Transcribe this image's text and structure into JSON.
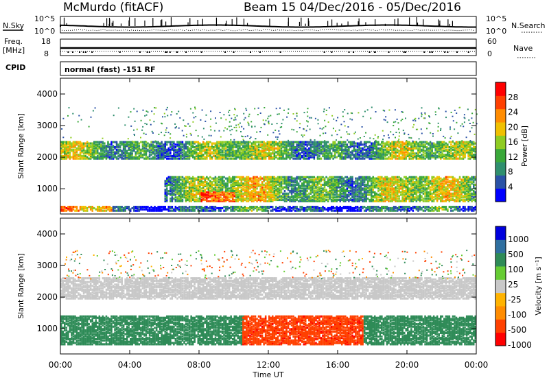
{
  "header": {
    "station": "McMurdo (fitACF)",
    "beam_dates": "Beam 15  04/Dec/2016 - 05/Dec/2016",
    "cpid_label": "CPID",
    "cpid_value": "normal (fast) -151 RF"
  },
  "panels": {
    "nsky_label": "N.Sky",
    "nsky_ticks": [
      "10^5",
      "10^0"
    ],
    "nsearch_label": "N.Search",
    "nsearch_ticks": [
      "10^5",
      "10^0"
    ],
    "freq_label_1": "Freq.",
    "freq_label_2": "[MHz]",
    "freq_ticks": [
      "18",
      "8"
    ],
    "nave_label": "Nave",
    "nave_ticks": [
      "60",
      "0"
    ]
  },
  "colors": {
    "power": [
      "#0000ff",
      "#2a52a6",
      "#2f8f6e",
      "#3aa83a",
      "#8fcc22",
      "#f0c000",
      "#ff8c00",
      "#ff4000",
      "#ff0000"
    ],
    "velocity": [
      "#ff0000",
      "#ff4000",
      "#ff8c00",
      "#ffb300",
      "#c8c8c8",
      "#66cc33",
      "#2e8b57",
      "#2f6fa0",
      "#0000dd"
    ]
  },
  "chart_data": [
    {
      "type": "heatmap",
      "quantity": "power",
      "ylabel": "Slant Range [km]",
      "xlabel": "Time UT",
      "ylim": [
        200,
        4500
      ],
      "xlim": [
        "00:00",
        "24:00"
      ],
      "yticks": [
        "1000",
        "2000",
        "3000",
        "4000"
      ],
      "xticks": [
        "00:00",
        "04:00",
        "08:00",
        "12:00",
        "16:00",
        "20:00",
        "00:00"
      ],
      "colorbar_label": "Power [dB]",
      "colorbar_ticks": [
        "28",
        "24",
        "20",
        "16",
        "12",
        "8",
        "4"
      ],
      "colorbar_range": [
        0,
        32
      ],
      "bands": [
        {
          "range_km": [
            1950,
            2500
          ],
          "time_h": [
            0,
            24
          ],
          "typical_dB": 12
        },
        {
          "range_km": [
            600,
            1400
          ],
          "time_h": [
            6,
            24
          ],
          "typical_dB": 14
        },
        {
          "range_km": [
            300,
            450
          ],
          "time_h": [
            0,
            24
          ],
          "typical_dB": 6
        }
      ]
    },
    {
      "type": "heatmap",
      "quantity": "velocity",
      "ylabel": "Slant Range [km]",
      "xlabel": "Time UT",
      "ylim": [
        200,
        4500
      ],
      "xlim": [
        "00:00",
        "24:00"
      ],
      "yticks": [
        "1000",
        "2000",
        "3000",
        "4000"
      ],
      "xticks": [
        "00:00",
        "04:00",
        "08:00",
        "12:00",
        "16:00",
        "20:00",
        "00:00"
      ],
      "colorbar_label": "Velocity [m s⁻¹]",
      "colorbar_ticks": [
        "1000",
        "500",
        "100",
        "25",
        "-25",
        "-100",
        "-500",
        "-1000"
      ],
      "bands": [
        {
          "range_km": [
            1950,
            2600
          ],
          "time_h": [
            0,
            24
          ],
          "typical_ms": 0
        },
        {
          "range_km": [
            500,
            1400
          ],
          "time_h": [
            0,
            10.5
          ],
          "typical_ms": 150
        },
        {
          "range_km": [
            500,
            1400
          ],
          "time_h": [
            10.5,
            17.5
          ],
          "typical_ms": -250
        },
        {
          "range_km": [
            500,
            1400
          ],
          "time_h": [
            17.5,
            24
          ],
          "typical_ms": 150
        }
      ]
    }
  ]
}
